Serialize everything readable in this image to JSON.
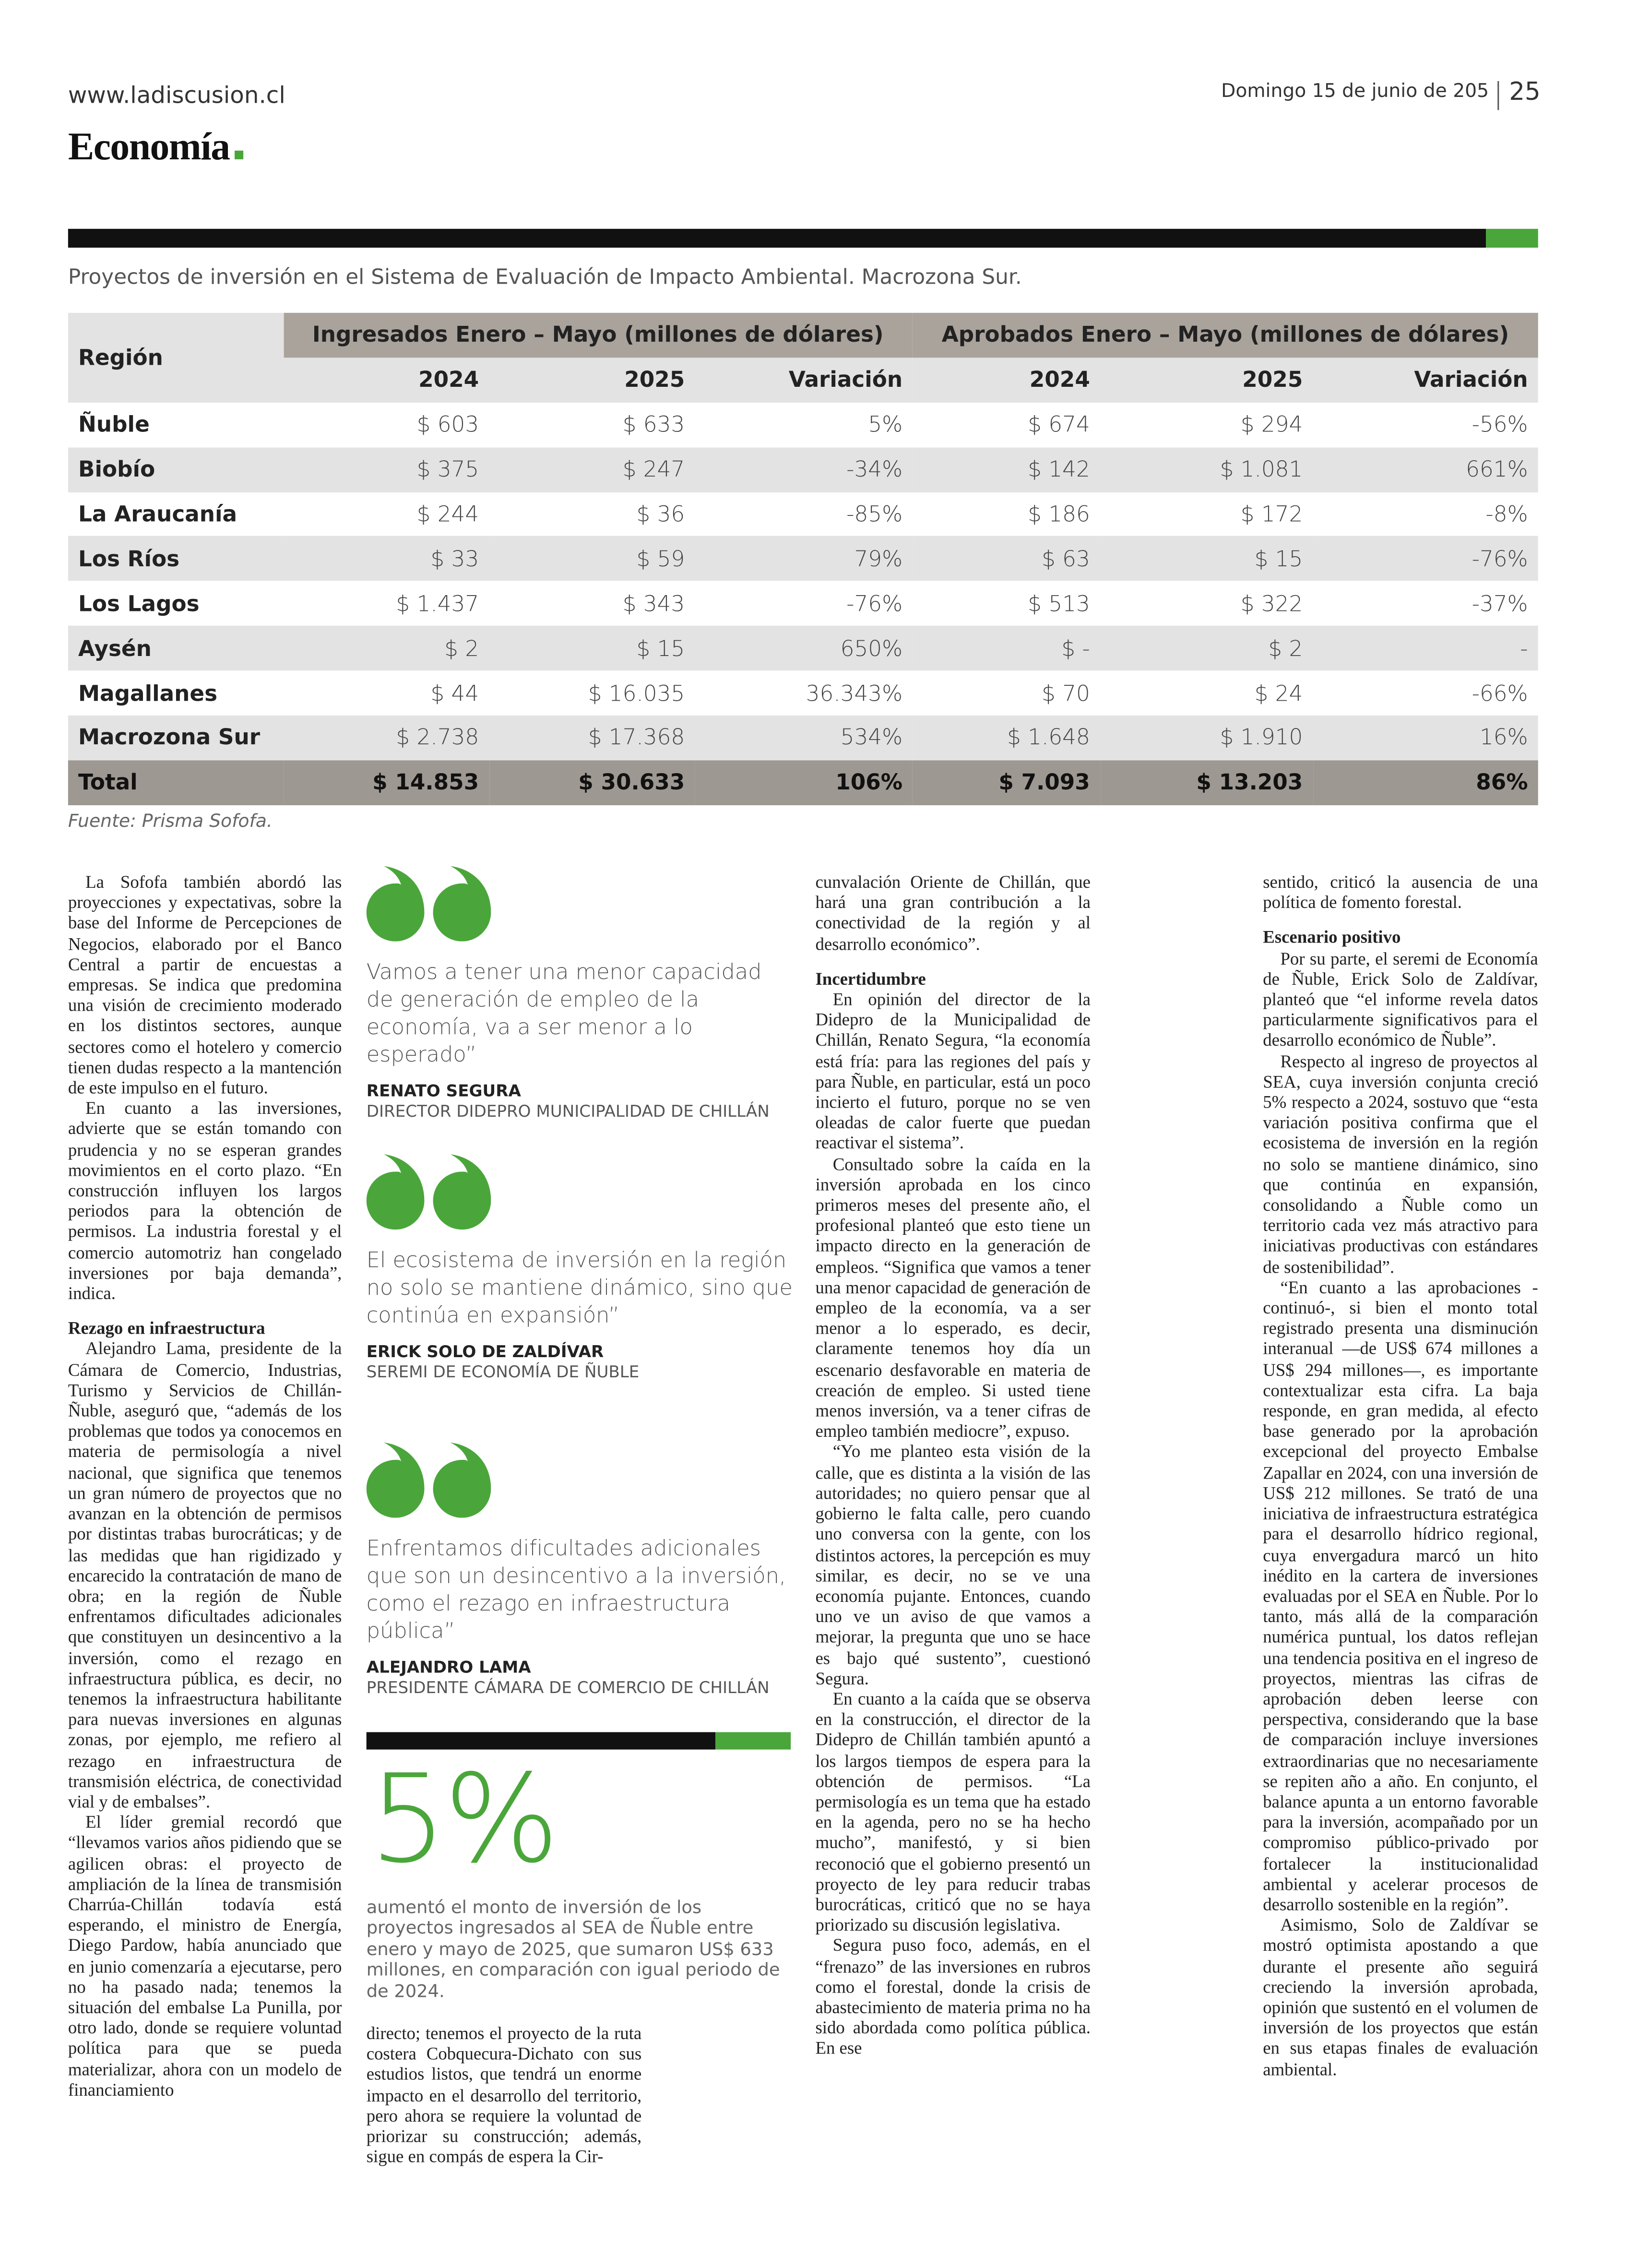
{
  "header": {
    "url": "www.ladiscusion.cl",
    "date": "Domingo 15 de junio de 205",
    "page": "25",
    "section": "Economía"
  },
  "table": {
    "caption": "Proyectos de inversión en el Sistema de Evaluación de Impacto Ambiental. Macrozona Sur.",
    "region_header": "Región",
    "groups": [
      "Ingresados Enero – Mayo (millones de dólares)",
      "Aprobados Enero – Mayo (millones de dólares)"
    ],
    "subheaders": [
      "2024",
      "2025",
      "Variación",
      "2024",
      "2025",
      "Variación"
    ],
    "rows": [
      [
        "Ñuble",
        "$ 603",
        "$ 633",
        "5%",
        "$ 674",
        "$ 294",
        "-56%"
      ],
      [
        "Biobío",
        "$ 375",
        "$ 247",
        "-34%",
        "$ 142",
        "$ 1.081",
        "661%"
      ],
      [
        "La Araucanía",
        "$ 244",
        "$ 36",
        "-85%",
        "$ 186",
        "$ 172",
        "-8%"
      ],
      [
        "Los Ríos",
        "$ 33",
        "$ 59",
        "79%",
        "$ 63",
        "$ 15",
        "-76%"
      ],
      [
        "Los Lagos",
        "$ 1.437",
        "$ 343",
        "-76%",
        "$ 513",
        "$ 322",
        "-37%"
      ],
      [
        "Aysén",
        "$ 2",
        "$ 15",
        "650%",
        "$ -",
        "$ 2",
        "-"
      ],
      [
        "Magallanes",
        "$ 44",
        "$ 16.035",
        "36.343%",
        "$ 70",
        "$ 24",
        "-66%"
      ],
      [
        "Macrozona Sur",
        "$ 2.738",
        "$ 17.368",
        "534%",
        "$ 1.648",
        "$ 1.910",
        "16%"
      ]
    ],
    "total": [
      "Total",
      "$ 14.853",
      "$ 30.633",
      "106%",
      "$ 7.093",
      "$ 13.203",
      "86%"
    ],
    "source": "Fuente: Prisma Sofofa."
  },
  "quotes": [
    {
      "text": "Vamos a tener una menor capacidad de generación de empleo de la economía, va a ser menor a lo esperado”",
      "name": "RENATO SEGURA",
      "role": "DIRECTOR DIDEPRO MUNICIPALIDAD DE CHILLÁN"
    },
    {
      "text": "El ecosistema de inversión en la región no solo se mantiene dinámico, sino que continúa en expansión”",
      "name": "ERICK SOLO DE ZALDÍVAR",
      "role": "SEREMI DE ECONOMÍA DE ÑUBLE"
    },
    {
      "text": "Enfrentamos dificultades adicionales que son un desincentivo a la inversión, como el rezago en infraestructura pública”",
      "name": "ALEJANDRO LAMA",
      "role": "PRESIDENTE CÁMARA DE COMERCIO DE CHILLÁN"
    }
  ],
  "stat": {
    "figure": "5%",
    "text": "aumentó el monto de inversión de los proyectos ingresados al SEA de Ñuble entre enero y mayo de 2025, que sumaron US$ 633 millones, en comparación con igual periodo de de 2024."
  },
  "columns": [
    {
      "continues": false,
      "items": [
        {
          "text": "La Sofofa también abordó las proyecciones y expectativas, sobre la base del Informe de Percepciones de Negocios, elaborado por el Banco Central a partir de encuestas a empresas. Se indica que predomina una visión de crecimiento moderado en los distintos sectores, aunque sectores como el hotelero y comercio tienen dudas respecto a la mantención de este impulso en el futuro."
        },
        {
          "text": "En cuanto a las inversiones, advierte que se están tomando con prudencia y no se esperan grandes movimientos en el corto plazo. “En construcción influyen los largos periodos para la obtención de permisos. La industria forestal y el comercio automotriz han congelado inversiones por baja demanda”, indica."
        },
        {
          "heading": "Rezago en infraestructura"
        },
        {
          "text": "Alejandro Lama, presidente de la Cámara de Comercio, Industrias, Turismo y Servicios de Chillán- Ñuble, aseguró que, “además de los problemas que todos ya conocemos en materia de permisología a nivel nacional, que significa que tenemos un gran número de proyectos que no avanzan en la obtención de permisos por distintas trabas burocráticas; y de las medidas que han rigidizado y encarecido la contratación de mano de obra; en la región de Ñuble enfrentamos dificultades adicionales que constituyen un desincentivo a la inversión, como el rezago en infraestructura pública, es decir, no tenemos la infraestructura habilitante para nuevas inversiones en algunas zonas, por ejemplo, me refiero al rezago en infraestructura de transmisión eléctrica, de conectividad vial y de embalses”."
        },
        {
          "text": "El líder gremial recordó que “llevamos varios años pidiendo que se agilicen obras: el proyecto de ampliación de la línea de transmisión Charrúa-Chillán todavía está esperando, el ministro de Energía, Diego Pardow, había anunciado que en junio comenzaría a ejecutarse, pero no ha pasado nada; tenemos la situación del embalse La Punilla, por otro lado, donde se requiere voluntad política para que se pueda materializar, ahora con un modelo de financiamiento"
        }
      ]
    },
    {
      "continues": true,
      "items": [
        {
          "text": "directo; tenemos el proyecto de la ruta costera Cobquecura-Dichato con sus estudios listos, que tendrá un enorme impacto en el desarrollo del territorio, pero ahora se requiere la voluntad de priorizar su construcción; además, sigue en compás de espera la Cir-"
        }
      ]
    },
    {
      "continues": true,
      "items": [
        {
          "text": "cunvalación Oriente de Chillán, que hará una gran contribución a la conectividad de la región y al desarrollo económico”."
        },
        {
          "heading": "Incertidumbre"
        },
        {
          "text": "En opinión del director de la Didepro de la Municipalidad de Chillán, Renato Segura, “la economía está fría: para las regiones del país y para Ñuble, en particular, está un poco incierto el futuro, porque no se ven oleadas de calor fuerte que puedan reactivar el sistema”."
        },
        {
          "text": "Consultado sobre la caída en la inversión aprobada en los cinco primeros meses del presente año, el profesional planteó que esto tiene un impacto directo en la generación de empleos. “Significa que vamos a tener una menor capacidad de generación de empleo de la economía, va a ser menor a lo esperado, es decir, claramente tenemos hoy día un escenario desfavorable en materia de creación de empleo. Si usted tiene menos inversión, va a tener cifras de empleo también mediocre”, expuso."
        },
        {
          "text": "“Yo me planteo esta visión de la calle, que es distinta a la visión de las autoridades; no quiero pensar que al gobierno le falta calle, pero cuando uno conversa con la gente, con los distintos actores, la percepción es muy similar, es decir, no se ve una economía pujante. Entonces, cuando uno ve un aviso de que vamos a mejorar, la pregunta que uno se hace es bajo qué sustento”, cuestionó Segura."
        },
        {
          "text": "En cuanto a la caída que se observa en la construcción, el director de la Didepro de Chillán también apuntó a los largos tiempos de espera para la obtención de permisos. “La permisología es un tema que ha estado en la agenda, pero no se ha hecho mucho”, manifestó, y si bien reconoció que el gobierno presentó un proyecto de ley para reducir trabas burocráticas, criticó que no se haya priorizado su discusión legislativa."
        },
        {
          "text": "Segura puso foco, además, en el “frenazo” de las inversiones en rubros como el forestal, donde la crisis de abastecimiento de materia prima no ha sido abordada como política pública. En ese"
        }
      ]
    },
    {
      "continues": true,
      "items": [
        {
          "text": "sentido, criticó la ausencia de una política de fomento forestal."
        },
        {
          "heading": "Escenario positivo"
        },
        {
          "text": "Por su parte, el seremi de Economía de Ñuble, Erick Solo de Zaldívar, planteó que “el informe revela datos particularmente significativos para el desarrollo económico de Ñuble”."
        },
        {
          "text": "Respecto al ingreso de proyectos al SEA, cuya inversión conjunta creció 5% respecto a 2024, sostuvo que “esta variación positiva confirma que el ecosistema de inversión en la región no solo se mantiene dinámico, sino que continúa en expansión, consolidando a Ñuble como un territorio cada vez más atractivo para iniciativas productivas con estándares de sostenibilidad”."
        },
        {
          "text": "“En cuanto a las aprobaciones -continuó-, si bien el monto total registrado presenta una disminución interanual —de US$ 674 millones a US$ 294 millones—, es importante contextualizar esta cifra. La baja responde, en gran medida, al efecto base generado por la aprobación excepcional del proyecto Embalse Zapallar en 2024, con una inversión de US$ 212 millones. Se trató de una iniciativa de infraestructura estratégica para el desarrollo hídrico regional, cuya envergadura marcó un hito inédito en la cartera de inversiones evaluadas por el SEA en Ñuble. Por lo tanto, más allá de la comparación numérica puntual, los datos reflejan una tendencia positiva en el ingreso de proyectos, mientras las cifras de aprobación deben leerse con perspectiva, considerando que la base de comparación incluye inversiones extraordinarias que no necesariamente se repiten año a año. En conjunto, el balance apunta a un entorno favorable para la inversión, acompañado por un compromiso público-privado por fortalecer la institucionalidad ambiental y acelerar procesos de desarrollo sostenible en la región”."
        },
        {
          "text": "Asimismo, Solo de Zaldívar se mostró optimista apostando a que durante el presente año seguirá creciendo la inversión aprobada, opinión que sustentó en el volumen de inversión de los proyectos que están en sus etapas finales de evaluación ambiental."
        }
      ]
    }
  ]
}
